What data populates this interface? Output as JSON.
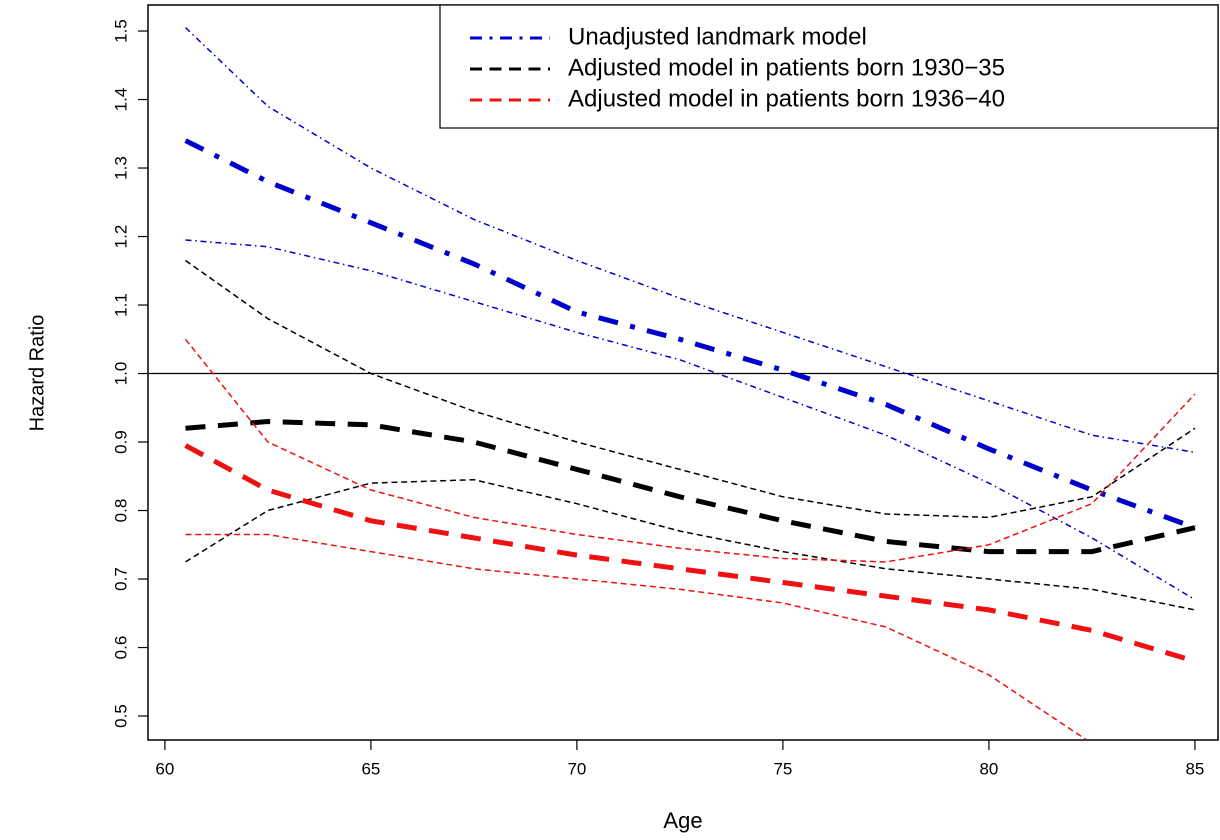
{
  "chart_data": {
    "type": "line",
    "xlabel": "Age",
    "ylabel": "Hazard Ratio",
    "x": [
      60.5,
      62.5,
      65,
      67.5,
      70,
      72.5,
      75,
      77.5,
      80,
      82.5,
      85
    ],
    "series": [
      {
        "name": "Unadjusted landmark model",
        "color": "#0000cc",
        "line_style": "dashdot",
        "values": [
          1.34,
          1.28,
          1.22,
          1.16,
          1.09,
          1.05,
          1.005,
          0.955,
          0.89,
          0.83,
          0.775
        ],
        "upper": [
          1.505,
          1.39,
          1.3,
          1.225,
          1.165,
          1.11,
          1.06,
          1.01,
          0.96,
          0.91,
          0.885
        ],
        "lower": [
          1.195,
          1.185,
          1.15,
          1.105,
          1.06,
          1.02,
          0.965,
          0.91,
          0.84,
          0.76,
          0.67
        ]
      },
      {
        "name": "Adjusted model in patients born 1930−35",
        "color": "#000000",
        "line_style": "dashed",
        "values": [
          0.92,
          0.93,
          0.925,
          0.9,
          0.86,
          0.82,
          0.785,
          0.755,
          0.74,
          0.74,
          0.775
        ],
        "upper": [
          1.165,
          1.08,
          1.0,
          0.945,
          0.9,
          0.86,
          0.82,
          0.795,
          0.79,
          0.82,
          0.92
        ],
        "lower": [
          0.725,
          0.8,
          0.84,
          0.845,
          0.81,
          0.77,
          0.74,
          0.715,
          0.7,
          0.685,
          0.655
        ]
      },
      {
        "name": "Adjusted model in patients born 1936−40",
        "color": "#ee1111",
        "line_style": "dashed",
        "values": [
          0.895,
          0.83,
          0.785,
          0.76,
          0.735,
          0.715,
          0.695,
          0.675,
          0.655,
          0.625,
          0.58
        ],
        "upper": [
          1.05,
          0.9,
          0.83,
          0.79,
          0.765,
          0.745,
          0.73,
          0.725,
          0.75,
          0.81,
          0.97
        ],
        "lower": [
          0.765,
          0.765,
          0.74,
          0.715,
          0.7,
          0.685,
          0.665,
          0.63,
          0.56,
          0.46,
          null
        ]
      }
    ],
    "hline": 1,
    "xlim": [
      59.59,
      85.56
    ],
    "ylim": [
      0.465,
      1.538
    ],
    "xticks": [
      60,
      65,
      70,
      75,
      80,
      85
    ],
    "yticks": [
      0.5,
      0.6,
      0.7,
      0.8,
      0.9,
      {
        "value": 1,
        "label": "1.0"
      },
      1.1,
      1.2,
      1.3,
      1.4,
      1.5
    ],
    "legend": "top-right"
  }
}
